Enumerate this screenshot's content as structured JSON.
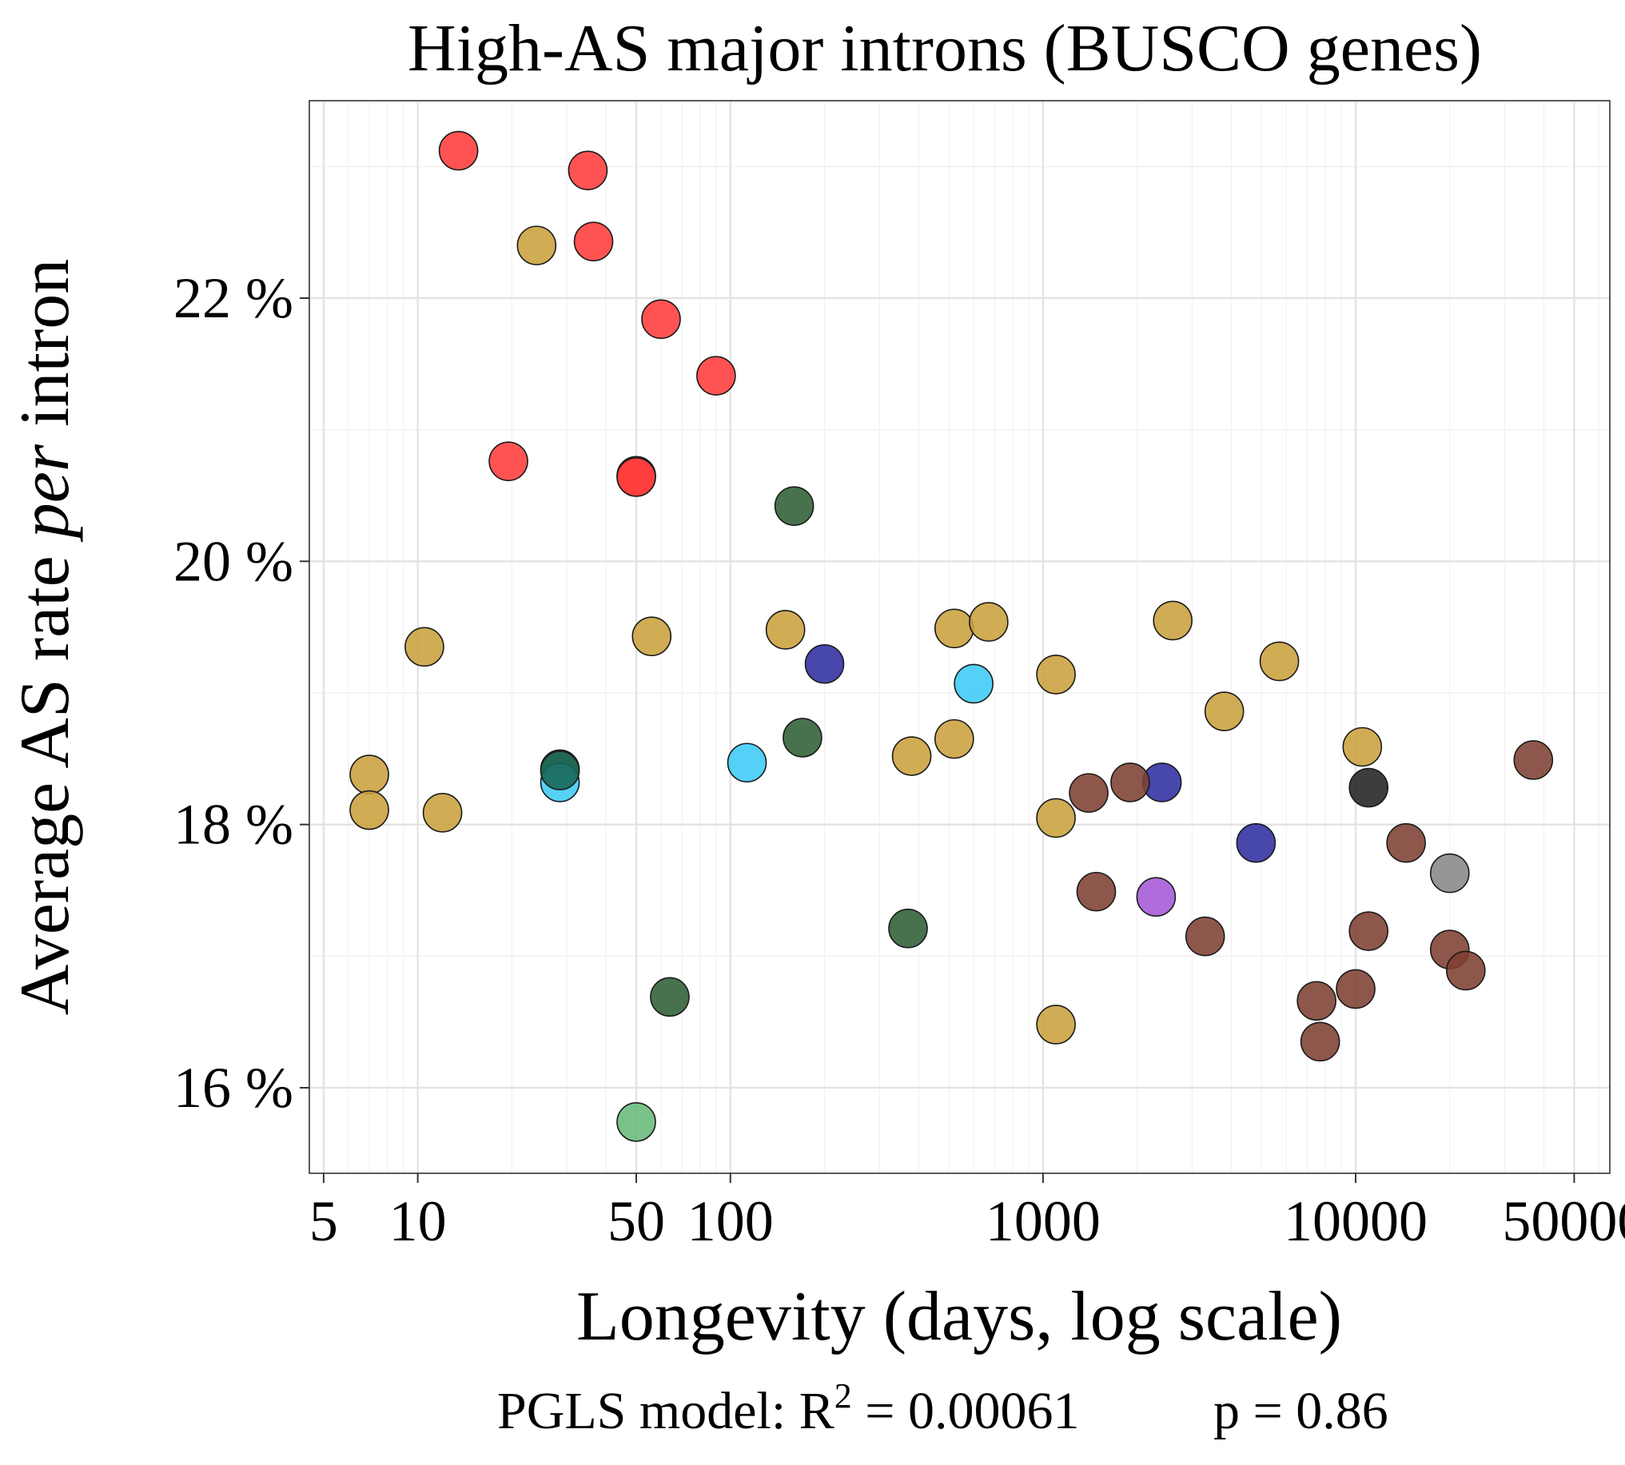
{
  "chart_data": {
    "type": "scatter",
    "title": "High-AS major introns (BUSCO genes)",
    "xlabel": "Longevity (days, log scale)",
    "ylabel_prefix": "Average AS rate ",
    "ylabel_italic": "per",
    "ylabel_suffix": " intron",
    "footnote": {
      "prefix": "PGLS model: R",
      "sup": "2",
      "middle": " = 0.00061",
      "p_text": "p = 0.86"
    },
    "x_scale": "log10",
    "xlim": [
      4.5,
      65000
    ],
    "ylim": [
      15.35,
      23.5
    ],
    "x_ticks": [
      5,
      10,
      50,
      100,
      1000,
      10000,
      50000
    ],
    "x_tick_labels": [
      "5",
      "10",
      "50",
      "100",
      "1000",
      "10000",
      "50000"
    ],
    "y_ticks": [
      16,
      18,
      20,
      22
    ],
    "y_tick_labels": [
      "16 %",
      "18 %",
      "20 %",
      "22 %"
    ],
    "y_minor_ticks": [
      17,
      19,
      21,
      23
    ],
    "grid": true,
    "legend": "none",
    "point_colors": {
      "red": "#ff3b3b",
      "gold": "#c9a03c",
      "dark_green": "#2e5e34",
      "light_green": "#66bb7a",
      "teal": "#1b6658",
      "cyan": "#3ccbf5",
      "blue": "#2d2da0",
      "brown": "#7e4032",
      "purple": "#a558d6",
      "black": "#222222",
      "gray": "#888888"
    },
    "points": [
      {
        "x": 13.5,
        "y": 23.12,
        "c": "red"
      },
      {
        "x": 35,
        "y": 22.97,
        "c": "red"
      },
      {
        "x": 36.5,
        "y": 22.43,
        "c": "red"
      },
      {
        "x": 60,
        "y": 21.84,
        "c": "red"
      },
      {
        "x": 90,
        "y": 21.41,
        "c": "red"
      },
      {
        "x": 19.5,
        "y": 20.76,
        "c": "red"
      },
      {
        "x": 50,
        "y": 20.65,
        "c": "red"
      },
      {
        "x": 50,
        "y": 20.64,
        "c": "red"
      },
      {
        "x": 24,
        "y": 22.4,
        "c": "gold"
      },
      {
        "x": 10.5,
        "y": 19.35,
        "c": "gold"
      },
      {
        "x": 56,
        "y": 19.43,
        "c": "gold"
      },
      {
        "x": 150,
        "y": 19.48,
        "c": "gold"
      },
      {
        "x": 520,
        "y": 19.49,
        "c": "gold"
      },
      {
        "x": 670,
        "y": 19.54,
        "c": "gold"
      },
      {
        "x": 1100,
        "y": 19.14,
        "c": "gold"
      },
      {
        "x": 2600,
        "y": 19.55,
        "c": "gold"
      },
      {
        "x": 5700,
        "y": 19.24,
        "c": "gold"
      },
      {
        "x": 3800,
        "y": 18.86,
        "c": "gold"
      },
      {
        "x": 10500,
        "y": 18.59,
        "c": "gold"
      },
      {
        "x": 7,
        "y": 18.38,
        "c": "gold"
      },
      {
        "x": 7,
        "y": 18.11,
        "c": "gold"
      },
      {
        "x": 12,
        "y": 18.09,
        "c": "gold"
      },
      {
        "x": 380,
        "y": 18.52,
        "c": "gold"
      },
      {
        "x": 520,
        "y": 18.65,
        "c": "gold"
      },
      {
        "x": 1100,
        "y": 18.05,
        "c": "gold"
      },
      {
        "x": 1100,
        "y": 16.48,
        "c": "gold"
      },
      {
        "x": 160,
        "y": 20.42,
        "c": "dark_green"
      },
      {
        "x": 170,
        "y": 18.66,
        "c": "dark_green"
      },
      {
        "x": 28.5,
        "y": 18.42,
        "c": "dark_green"
      },
      {
        "x": 370,
        "y": 17.21,
        "c": "dark_green"
      },
      {
        "x": 64,
        "y": 16.69,
        "c": "dark_green"
      },
      {
        "x": 50,
        "y": 15.74,
        "c": "light_green"
      },
      {
        "x": 28.5,
        "y": 18.32,
        "c": "cyan"
      },
      {
        "x": 28.5,
        "y": 18.41,
        "c": "teal"
      },
      {
        "x": 113,
        "y": 18.47,
        "c": "cyan"
      },
      {
        "x": 600,
        "y": 19.07,
        "c": "cyan"
      },
      {
        "x": 200,
        "y": 19.22,
        "c": "blue"
      },
      {
        "x": 2400,
        "y": 18.32,
        "c": "blue"
      },
      {
        "x": 4800,
        "y": 17.86,
        "c": "blue"
      },
      {
        "x": 1400,
        "y": 18.24,
        "c": "brown"
      },
      {
        "x": 1900,
        "y": 18.32,
        "c": "brown"
      },
      {
        "x": 1480,
        "y": 17.49,
        "c": "brown"
      },
      {
        "x": 3300,
        "y": 17.15,
        "c": "brown"
      },
      {
        "x": 7500,
        "y": 16.66,
        "c": "brown"
      },
      {
        "x": 7700,
        "y": 16.35,
        "c": "brown"
      },
      {
        "x": 10000,
        "y": 16.75,
        "c": "brown"
      },
      {
        "x": 11000,
        "y": 17.19,
        "c": "brown"
      },
      {
        "x": 14500,
        "y": 17.86,
        "c": "brown"
      },
      {
        "x": 20000,
        "y": 17.05,
        "c": "brown"
      },
      {
        "x": 22500,
        "y": 16.89,
        "c": "brown"
      },
      {
        "x": 37000,
        "y": 18.49,
        "c": "brown"
      },
      {
        "x": 2300,
        "y": 17.45,
        "c": "purple"
      },
      {
        "x": 11000,
        "y": 18.28,
        "c": "black"
      },
      {
        "x": 20000,
        "y": 17.63,
        "c": "gray"
      }
    ]
  }
}
